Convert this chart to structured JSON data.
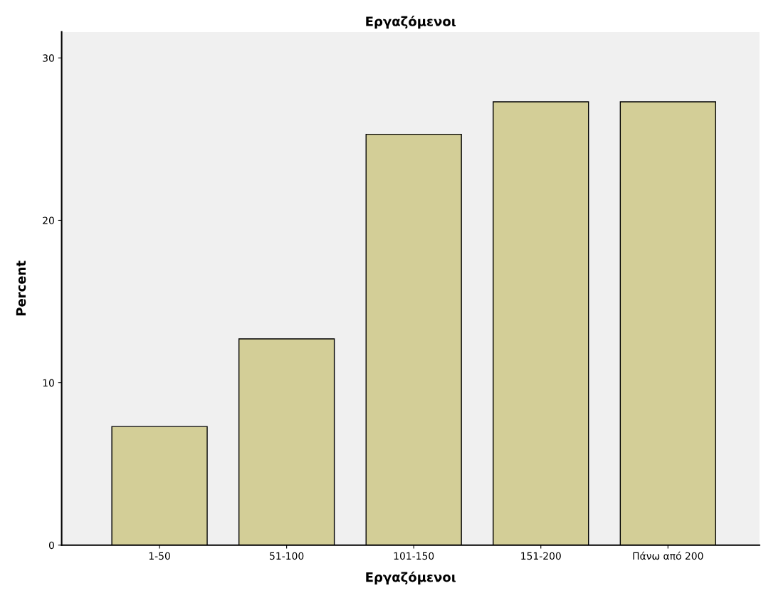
{
  "chart_data": {
    "type": "bar",
    "title": "Εργαζόμενοι",
    "xlabel": "Εργαζόμενοι",
    "ylabel": "Percent",
    "categories": [
      "1-50",
      "51-100",
      "101-150",
      "151-200",
      "Πάνω από 200"
    ],
    "values": [
      7.3,
      12.7,
      25.3,
      27.3,
      27.3
    ],
    "color": "#d3ce97",
    "ylim": [
      0,
      31.6
    ],
    "yticks": [
      0,
      10,
      20,
      30
    ],
    "grid": false,
    "legend": false
  }
}
